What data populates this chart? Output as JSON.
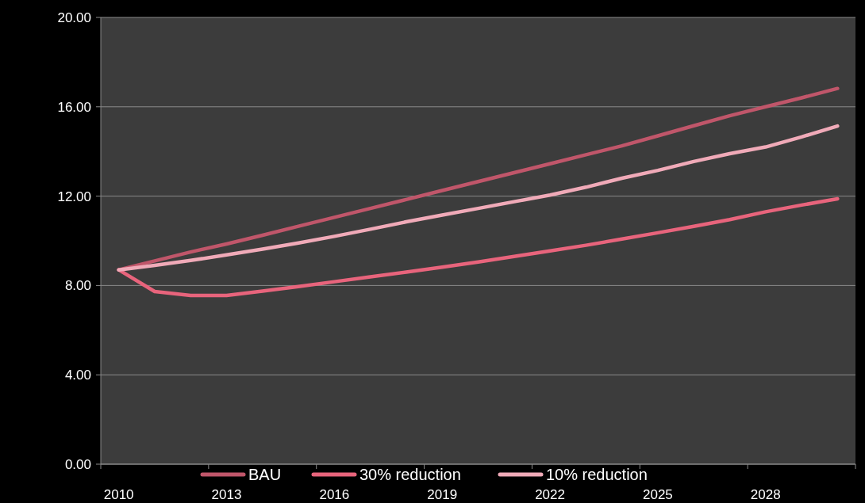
{
  "chart_data": {
    "type": "line",
    "categories": [
      "2010",
      null,
      null,
      "2013",
      null,
      null,
      "2016",
      null,
      null,
      "2019",
      null,
      null,
      "2022",
      null,
      null,
      "2025",
      null,
      null,
      "2028",
      null,
      null
    ],
    "series": [
      {
        "name": "BAU",
        "color": "#c0566a",
        "values": [
          8.7,
          9.1,
          9.5,
          9.86,
          10.25,
          10.65,
          11.05,
          11.45,
          11.85,
          12.25,
          12.65,
          13.05,
          13.45,
          13.85,
          14.25,
          14.7,
          15.15,
          15.6,
          16.0,
          16.4,
          16.82
        ]
      },
      {
        "name": "30% reduction",
        "color": "#e8647c",
        "values": [
          8.7,
          7.73,
          7.55,
          7.55,
          7.75,
          7.95,
          8.17,
          8.39,
          8.6,
          8.82,
          9.05,
          9.3,
          9.55,
          9.8,
          10.08,
          10.36,
          10.65,
          10.95,
          11.3,
          11.6,
          11.88
        ]
      },
      {
        "name": "10% reduction",
        "color": "#f0aab8",
        "values": [
          8.7,
          8.9,
          9.12,
          9.37,
          9.63,
          9.9,
          10.2,
          10.52,
          10.85,
          11.15,
          11.45,
          11.75,
          12.05,
          12.4,
          12.8,
          13.15,
          13.55,
          13.9,
          14.2,
          14.65,
          15.14
        ]
      }
    ],
    "ylim": [
      0,
      20
    ],
    "yticks": [
      {
        "value": 0,
        "label": "0.00"
      },
      {
        "value": 4,
        "label": "4.00"
      },
      {
        "value": 8,
        "label": "8.00"
      },
      {
        "value": 12,
        "label": "12.00"
      },
      {
        "value": 16,
        "label": "16.00"
      },
      {
        "value": 20,
        "label": "20.00"
      }
    ],
    "grid": "y",
    "legend": "bottom"
  }
}
